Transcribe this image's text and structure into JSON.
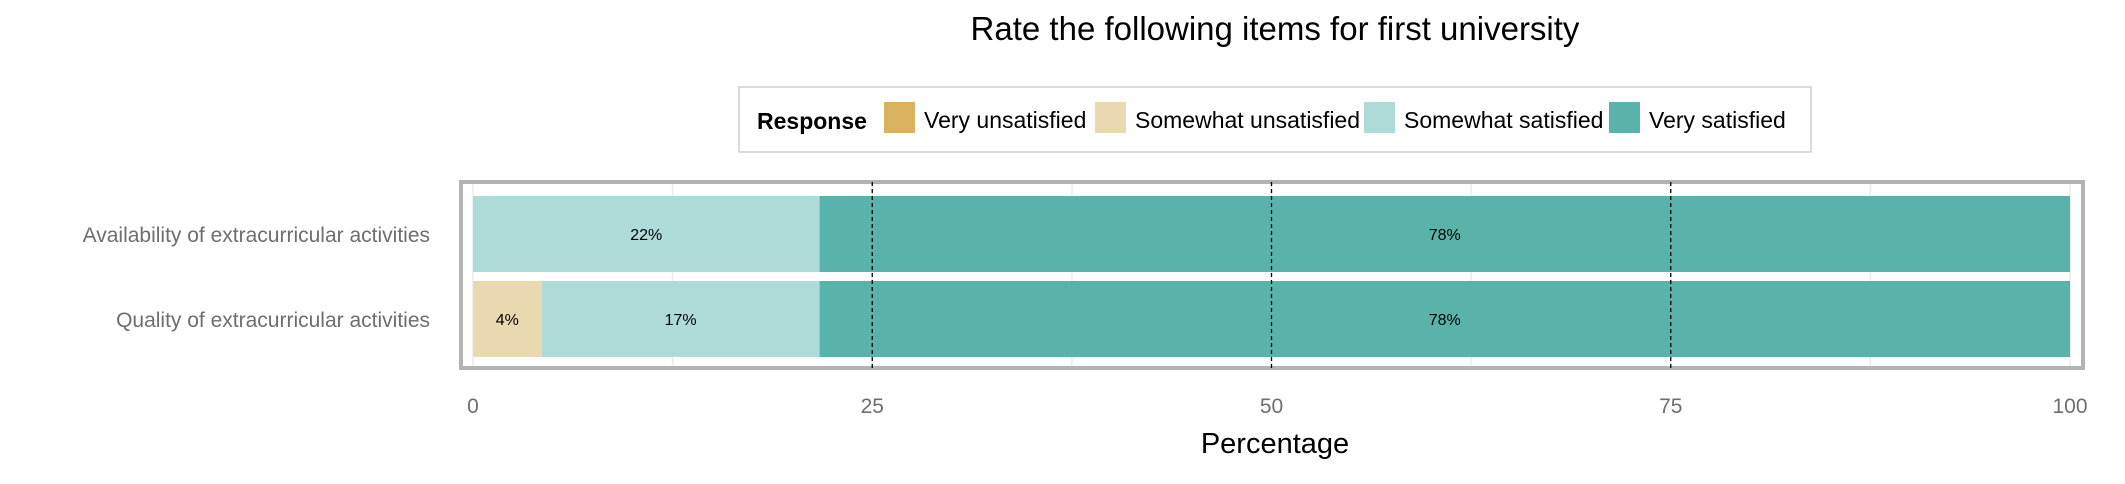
{
  "chart_data": {
    "type": "bar",
    "orientation": "horizontal",
    "stacked": true,
    "title": "Rate the following items for first university",
    "xlabel": "Percentage",
    "ylabel": "",
    "xlim": [
      0,
      100
    ],
    "x_ticks": [
      0,
      25,
      50,
      75,
      100
    ],
    "x_tick_labels": [
      "0",
      "25",
      "50",
      "75",
      "100"
    ],
    "dashed_reference_lines": [
      25,
      50,
      75
    ],
    "grid": true,
    "legend": {
      "title": "Response",
      "placement": "top-center",
      "entries": [
        "Very unsatisfied",
        "Somewhat unsatisfied",
        "Somewhat satisfied",
        "Very satisfied"
      ]
    },
    "categories": [
      "Availability of extracurricular activities",
      "Quality of extracurricular activities"
    ],
    "series": [
      {
        "name": "Very unsatisfied",
        "color": "#D9B25F",
        "values": [
          0,
          0
        ],
        "labels": [
          "",
          ""
        ]
      },
      {
        "name": "Somewhat unsatisfied",
        "color": "#EAD8B0",
        "values": [
          0,
          4.3
        ],
        "labels": [
          "",
          "4%"
        ]
      },
      {
        "name": "Somewhat satisfied",
        "color": "#AEDBD7",
        "values": [
          21.7,
          17.4
        ],
        "labels": [
          "22%",
          "17%"
        ]
      },
      {
        "name": "Very satisfied",
        "color": "#5AB3AA",
        "values": [
          78.3,
          78.3
        ],
        "labels": [
          "78%",
          "78%"
        ]
      }
    ]
  }
}
